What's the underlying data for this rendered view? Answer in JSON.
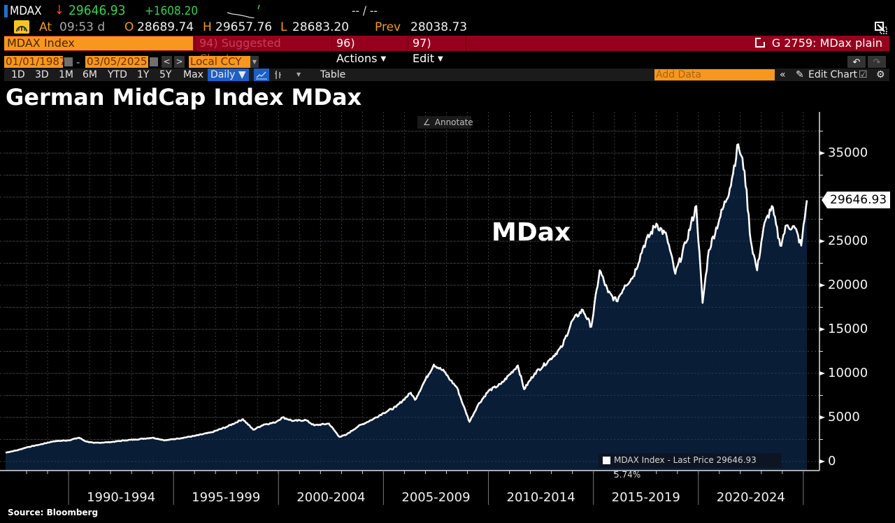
{
  "ticker": {
    "symbol": "MDAX",
    "direction_arrow": "↓",
    "last_price": "29646.93",
    "net_change": "+1608.20",
    "bid_ask": "-- / --",
    "time_label": "At",
    "time": "09:53 d",
    "open_label": "O",
    "open": "28689.74",
    "high_label": "H",
    "high": "29657.76",
    "low_label": "L",
    "low": "28683.20",
    "prev_label": "Prev",
    "prev": "28038.73"
  },
  "command_bar": {
    "security": "MDAX Index",
    "suggested_charts": "94) Suggested Charts",
    "actions": "96) Actions",
    "edit": "97) Edit",
    "graph_title": "G 2759: MDax plain"
  },
  "date_range": {
    "start": "01/01/1987",
    "separator": "-",
    "end": "03/05/2025",
    "prev_icon": "<",
    "next_icon": ">",
    "currency": "Local CCY"
  },
  "toolbar": {
    "periods": [
      "1D",
      "3D",
      "1M",
      "6M",
      "YTD",
      "1Y",
      "5Y",
      "Max"
    ],
    "frequency": "Daily ▼",
    "table": "Table",
    "add_data_placeholder": "Add Data",
    "collapse": "«",
    "edit_chart": "Edit Chart",
    "undo_icon": "↶",
    "redo_icon": "↷"
  },
  "annotate_label": "Annotate",
  "colors": {
    "accent_orange": "#f8971d",
    "command_red": "#96001c",
    "up_green": "#33d14c",
    "down_red": "#ff3a3a",
    "area_fill": "#0b1f3a",
    "line": "#ffffff"
  },
  "chart_data": {
    "type": "area",
    "title": "German MidCap Index MDax",
    "series_label": "MDax",
    "xlabel": "",
    "ylabel": "",
    "x_tick_labels": [
      "1990-1994",
      "1995-1999",
      "2000-2004",
      "2005-2009",
      "2010-2014",
      "2015-2019",
      "2020-2024"
    ],
    "y_ticks": [
      0,
      5000,
      10000,
      15000,
      20000,
      25000,
      35000
    ],
    "y_tick_labels": [
      "0",
      "5000",
      "10000",
      "15000",
      "20000",
      "25000",
      "35000"
    ],
    "ylim": [
      0,
      38000
    ],
    "xlim": [
      1987.0,
      2025.17
    ],
    "grid": true,
    "last_price_tag": "29646.93",
    "legend": {
      "position": "bottom-right",
      "entry": "MDAX Index - Last Price 29646.93  5.74%"
    },
    "series": [
      {
        "name": "MDAX Index - Last Price",
        "x": [
          1987.0,
          1987.6,
          1988.0,
          1988.6,
          1989.3,
          1990.0,
          1990.5,
          1990.8,
          1991.2,
          1992.0,
          1992.7,
          1993.2,
          1994.0,
          1994.6,
          1995.2,
          1996.0,
          1996.8,
          1997.5,
          1998.3,
          1998.8,
          1999.3,
          1999.8,
          2000.2,
          2000.7,
          2001.3,
          2001.7,
          2002.4,
          2002.9,
          2003.2,
          2003.8,
          2004.5,
          2005.0,
          2005.6,
          2006.3,
          2006.5,
          2007.0,
          2007.4,
          2007.9,
          2008.2,
          2008.5,
          2008.8,
          2009.1,
          2009.5,
          2010.0,
          2010.6,
          2011.4,
          2011.7,
          2012.2,
          2012.9,
          2013.5,
          2014.0,
          2014.5,
          2014.9,
          2015.3,
          2015.7,
          2016.1,
          2016.5,
          2016.9,
          2017.4,
          2018.0,
          2018.5,
          2018.9,
          2019.4,
          2019.9,
          2020.2,
          2020.5,
          2021.0,
          2021.5,
          2021.9,
          2022.2,
          2022.5,
          2022.8,
          2023.1,
          2023.5,
          2023.9,
          2024.2,
          2024.6,
          2024.9,
          2025.17
        ],
        "values": [
          1000,
          1300,
          1600,
          1900,
          2300,
          2400,
          2700,
          2300,
          2100,
          2200,
          2400,
          2500,
          2700,
          2400,
          2600,
          2900,
          3300,
          3900,
          4800,
          3600,
          4200,
          4400,
          5000,
          4600,
          4700,
          4100,
          4300,
          2800,
          3000,
          4000,
          4800,
          5500,
          6200,
          7800,
          7000,
          9300,
          11000,
          10200,
          9200,
          8400,
          6400,
          4500,
          6400,
          8000,
          8800,
          10900,
          8200,
          10000,
          11500,
          13000,
          16000,
          17200,
          15300,
          21700,
          19200,
          18200,
          20000,
          21000,
          24500,
          27000,
          25500,
          21300,
          24800,
          29000,
          18000,
          24000,
          27500,
          31000,
          36000,
          33000,
          25000,
          21700,
          26500,
          29000,
          24500,
          26800,
          26500,
          24500,
          29646.93
        ]
      }
    ]
  },
  "source_note": "Source: Bloomberg"
}
